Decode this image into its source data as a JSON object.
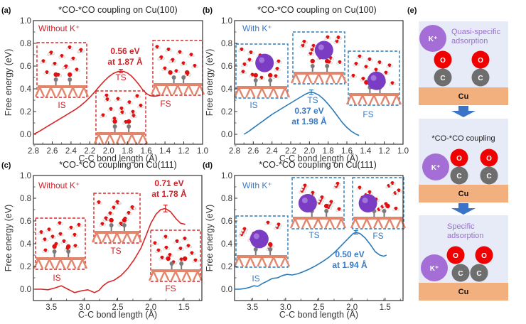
{
  "colors": {
    "red_series": "#d62728",
    "blue_series": "#2a7ab8",
    "red_text": "#cc2229",
    "blue_text": "#3a78c3",
    "purple_text": "#9a6fd0",
    "k_ion": "#a56ed6",
    "oxygen": "#f00000",
    "carbon": "#6e6e6e",
    "copper": "#f2b07f",
    "panel_bg": "#e6ebf7",
    "arrow": "#3b73c8",
    "snapshot_cu": "#e3856b",
    "snapshot_k": "#7a3cc2"
  },
  "chart_data": [
    {
      "id": "a",
      "panel_label": "(a)",
      "type": "line",
      "title": "*CO-*CO coupling on Cu(100)",
      "xlabel": "C-C bond length (Å)",
      "ylabel": "Free energy (eV)",
      "xlim": [
        2.8,
        1.0
      ],
      "ylim": [
        -0.1,
        1.0
      ],
      "xticks": [
        "2.8",
        "2.6",
        "2.4",
        "2.2",
        "2.0",
        "1.8",
        "1.6",
        "1.4",
        "1.2",
        "1.0"
      ],
      "xtick_values": [
        2.8,
        2.6,
        2.4,
        2.2,
        2.0,
        1.8,
        1.6,
        1.4,
        1.2,
        1.0
      ],
      "yticks": [
        "0.0",
        "0.2",
        "0.4",
        "0.6",
        "0.8",
        "1.0"
      ],
      "ytick_values": [
        0.0,
        0.2,
        0.4,
        0.6,
        0.8,
        1.0
      ],
      "condition": "Without K⁺",
      "series_color": "red",
      "x": [
        2.8,
        2.75,
        2.7,
        2.65,
        2.6,
        2.55,
        2.5,
        2.45,
        2.4,
        2.35,
        2.3,
        2.25,
        2.2,
        2.15,
        2.1,
        2.05,
        2.0,
        1.95,
        1.9,
        1.87,
        1.84,
        1.8,
        1.76,
        1.72,
        1.68,
        1.64,
        1.6,
        1.56,
        1.52,
        1.48,
        1.45
      ],
      "y": [
        0.0,
        0.02,
        0.045,
        0.07,
        0.095,
        0.12,
        0.145,
        0.17,
        0.195,
        0.22,
        0.25,
        0.285,
        0.325,
        0.37,
        0.42,
        0.465,
        0.505,
        0.535,
        0.552,
        0.555,
        0.553,
        0.54,
        0.515,
        0.48,
        0.44,
        0.395,
        0.36,
        0.34,
        0.335,
        0.338,
        0.345
      ],
      "ts": {
        "x": 1.87,
        "y": 0.556,
        "err": 0.015
      },
      "annotation": [
        "0.56 eV",
        "at 1.87 Å"
      ],
      "states": [
        "IS",
        "TS",
        "FS"
      ]
    },
    {
      "id": "b",
      "panel_label": "(b)",
      "type": "line",
      "title": "*CO-*CO coupling on Cu(100)",
      "xlabel": "C-C bond length (Å)",
      "ylabel": "Free energy (eV)",
      "xlim": [
        2.8,
        1.0
      ],
      "ylim": [
        -0.1,
        1.0
      ],
      "xticks": [
        "2.8",
        "2.6",
        "2.4",
        "2.2",
        "2.0",
        "1.8",
        "1.6",
        "1.4",
        "1.2",
        "1.0"
      ],
      "xtick_values": [
        2.8,
        2.6,
        2.4,
        2.2,
        2.0,
        1.8,
        1.6,
        1.4,
        1.2,
        1.0
      ],
      "yticks": [
        "0.0",
        "0.2",
        "0.4",
        "0.6",
        "0.8",
        "1.0"
      ],
      "ytick_values": [
        0.0,
        0.2,
        0.4,
        0.6,
        0.8,
        1.0
      ],
      "condition": "With K⁺",
      "series_color": "blue",
      "x": [
        2.7,
        2.65,
        2.6,
        2.55,
        2.5,
        2.45,
        2.4,
        2.35,
        2.3,
        2.25,
        2.2,
        2.15,
        2.1,
        2.05,
        2.0,
        1.98,
        1.95,
        1.9,
        1.85,
        1.8,
        1.75,
        1.7,
        1.65,
        1.6,
        1.55,
        1.5,
        1.47
      ],
      "y": [
        0.0,
        0.025,
        0.055,
        0.085,
        0.115,
        0.145,
        0.175,
        0.2,
        0.225,
        0.25,
        0.275,
        0.3,
        0.325,
        0.35,
        0.368,
        0.37,
        0.365,
        0.345,
        0.31,
        0.265,
        0.215,
        0.16,
        0.105,
        0.06,
        0.025,
        0.0,
        -0.01
      ],
      "ts": {
        "x": 1.98,
        "y": 0.37,
        "err": 0.02
      },
      "annotation": [
        "0.37 eV",
        "at 1.98 Å"
      ],
      "states": [
        "IS",
        "TS",
        "FS"
      ]
    },
    {
      "id": "c",
      "panel_label": "(c)",
      "type": "line",
      "title": "*CO-*CO coupling on Cu(111)",
      "xlabel": "C-C bond length (Å)",
      "ylabel": "Free energy (eV)",
      "xlim": [
        3.77,
        1.23
      ],
      "ylim": [
        -0.1,
        1.0
      ],
      "xticks": [
        "3.5",
        "3.0",
        "2.5",
        "2.0",
        "1.5"
      ],
      "xtick_values": [
        3.5,
        3.0,
        2.5,
        2.0,
        1.5
      ],
      "yticks": [
        "0.0",
        "0.2",
        "0.4",
        "0.6",
        "0.8",
        "1.0"
      ],
      "ytick_values": [
        0.0,
        0.2,
        0.4,
        0.6,
        0.8,
        1.0
      ],
      "condition": "Without K⁺",
      "series_color": "red",
      "x": [
        3.75,
        3.65,
        3.55,
        3.45,
        3.35,
        3.25,
        3.15,
        3.05,
        2.95,
        2.85,
        2.78,
        2.72,
        2.65,
        2.55,
        2.45,
        2.35,
        2.25,
        2.15,
        2.08,
        2.0,
        1.92,
        1.85,
        1.78,
        1.7,
        1.62,
        1.55,
        1.48
      ],
      "y": [
        0.0,
        0.0,
        -0.005,
        0.01,
        0.03,
        0.0,
        -0.03,
        -0.015,
        -0.005,
        -0.03,
        -0.01,
        0.03,
        0.06,
        0.08,
        0.12,
        0.18,
        0.26,
        0.36,
        0.46,
        0.58,
        0.66,
        0.7,
        0.71,
        0.68,
        0.62,
        0.58,
        0.57
      ],
      "ts": {
        "x": 1.78,
        "y": 0.71,
        "err": 0.03
      },
      "annotation": [
        "0.71 eV",
        "at 1.78 Å"
      ],
      "states": [
        "IS",
        "TS",
        "FS"
      ]
    },
    {
      "id": "d",
      "panel_label": "(d)",
      "type": "line",
      "title": "*CO-*CO coupling on Cu(111)",
      "xlabel": "C-C bond length (Å)",
      "ylabel": "Free energy (eV)",
      "xlim": [
        3.77,
        1.23
      ],
      "ylim": [
        -0.1,
        1.0
      ],
      "xticks": [
        "3.5",
        "3.0",
        "2.5",
        "2.0",
        "1.5"
      ],
      "xtick_values": [
        3.5,
        3.0,
        2.5,
        2.0,
        1.5
      ],
      "yticks": [
        "0.0",
        "0.2",
        "0.4",
        "0.6",
        "0.8",
        "1.0"
      ],
      "ytick_values": [
        0.0,
        0.2,
        0.4,
        0.6,
        0.8,
        1.0
      ],
      "condition": "With K⁺",
      "series_color": "blue",
      "x": [
        3.77,
        3.7,
        3.62,
        3.55,
        3.48,
        3.42,
        3.35,
        3.28,
        3.2,
        3.12,
        3.05,
        2.98,
        2.9,
        2.82,
        2.75,
        2.65,
        2.55,
        2.45,
        2.35,
        2.25,
        2.15,
        2.05,
        1.98,
        1.94,
        1.88,
        1.8,
        1.72,
        1.65,
        1.58,
        1.52,
        1.48
      ],
      "y": [
        0.0,
        0.0,
        0.005,
        0.015,
        0.03,
        0.025,
        0.05,
        0.07,
        0.095,
        0.1,
        0.12,
        0.13,
        0.125,
        0.135,
        0.15,
        0.175,
        0.205,
        0.24,
        0.28,
        0.33,
        0.39,
        0.45,
        0.49,
        0.5,
        0.49,
        0.45,
        0.39,
        0.33,
        0.3,
        0.29,
        0.3
      ],
      "ts": {
        "x": 1.94,
        "y": 0.5,
        "err": 0.015
      },
      "annotation": [
        "0.50 eV",
        "at 1.94 Å"
      ],
      "states": [
        "IS",
        "TS",
        "FS"
      ]
    }
  ],
  "scheme": {
    "panel_label": "(e)",
    "stages": [
      {
        "caption": [
          "Quasi-specific",
          "adsorption"
        ],
        "k_label": "K⁺",
        "o_label": "O",
        "c_label": "C",
        "cu_label": "Cu"
      },
      {
        "caption": [
          "*CO-*CO coupling"
        ],
        "k_label": "K⁺",
        "o_label": "O",
        "c_label": "C",
        "cu_label": "Cu"
      },
      {
        "caption": [
          "Specific",
          "adsorption"
        ],
        "k_label": "K⁺",
        "o_label": "O",
        "c_label": "C",
        "cu_label": "Cu"
      }
    ]
  }
}
